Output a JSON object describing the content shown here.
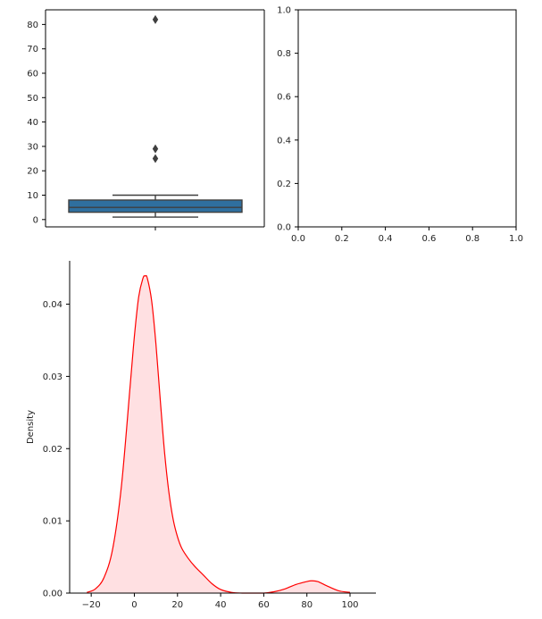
{
  "chart_data": [
    {
      "type": "box",
      "ylim": [
        -3,
        86
      ],
      "yticks": [
        0,
        10,
        20,
        30,
        40,
        50,
        60,
        70,
        80
      ],
      "ytick_labels": [
        "0",
        "10",
        "20",
        "30",
        "40",
        "50",
        "60",
        "70",
        "80"
      ],
      "box": {
        "whisker_low": 1,
        "q1": 3,
        "median": 5,
        "q3": 8,
        "whisker_high": 10
      },
      "outliers": [
        25,
        29,
        82
      ],
      "box_color": "#2f6f9f",
      "edge_color": "#3f3f3f",
      "xlabel": "",
      "ylabel": ""
    },
    {
      "type": "empty",
      "xlim": [
        0,
        1
      ],
      "ylim": [
        0,
        1
      ],
      "xticks": [
        0.0,
        0.2,
        0.4,
        0.6,
        0.8,
        1.0
      ],
      "xtick_labels": [
        "0.0",
        "0.2",
        "0.4",
        "0.6",
        "0.8",
        "1.0"
      ],
      "yticks": [
        0.0,
        0.2,
        0.4,
        0.6,
        0.8,
        1.0
      ],
      "ytick_labels": [
        "0.0",
        "0.2",
        "0.4",
        "0.6",
        "0.8",
        "1.0"
      ]
    },
    {
      "type": "area",
      "ylabel": "Density",
      "xlabel": "",
      "xlim": [
        -30,
        112
      ],
      "ylim": [
        0,
        0.046
      ],
      "xticks": [
        -20,
        0,
        20,
        40,
        60,
        80,
        100
      ],
      "xtick_labels": [
        "−20",
        "0",
        "20",
        "40",
        "60",
        "80",
        "100"
      ],
      "yticks": [
        0.0,
        0.01,
        0.02,
        0.03,
        0.04
      ],
      "ytick_labels": [
        "0.00",
        "0.01",
        "0.02",
        "0.03",
        "0.04"
      ],
      "line_color": "#ff0000",
      "fill_color": "#ffe0e2",
      "series": [
        {
          "x": [
            -22,
            -18,
            -14,
            -10,
            -6,
            -2,
            0,
            2,
            4,
            5,
            6,
            8,
            10,
            12,
            14,
            16,
            18,
            20,
            22,
            25,
            28,
            32,
            36,
            40,
            45,
            50,
            55,
            60,
            65,
            70,
            75,
            80,
            82,
            85,
            90,
            95,
            100
          ],
          "y": [
            0.0001,
            0.0006,
            0.0022,
            0.0062,
            0.0148,
            0.0285,
            0.0355,
            0.041,
            0.0436,
            0.0439,
            0.0436,
            0.0405,
            0.0345,
            0.0268,
            0.0195,
            0.014,
            0.0102,
            0.0078,
            0.0062,
            0.0048,
            0.0037,
            0.0025,
            0.0013,
            0.0005,
            0.0001,
            0.0,
            0.0,
            0.0,
            0.0002,
            0.0006,
            0.0012,
            0.0016,
            0.0017,
            0.0016,
            0.0009,
            0.0003,
            0.0001
          ]
        }
      ]
    }
  ]
}
